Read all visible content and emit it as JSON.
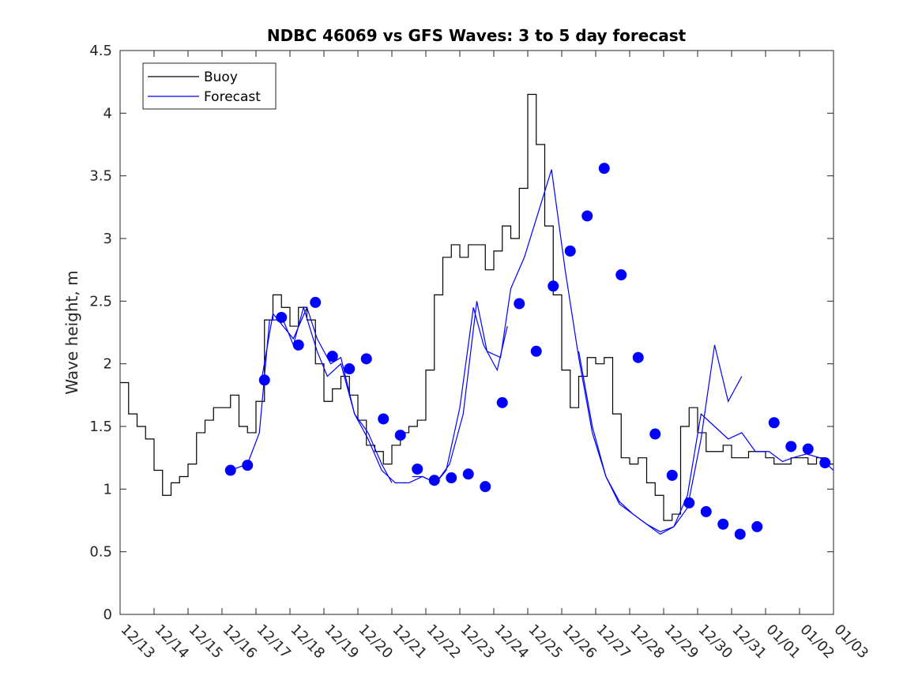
{
  "chart_data": {
    "type": "line",
    "title": "NDBC 46069 vs GFS Waves: 3 to 5 day forecast",
    "xlabel": "",
    "ylabel": "Wave height, m",
    "x_tick_labels": [
      "12/13",
      "12/14",
      "12/15",
      "12/16",
      "12/17",
      "12/18",
      "12/19",
      "12/20",
      "12/21",
      "12/22",
      "12/23",
      "12/24",
      "12/25",
      "12/26",
      "12/27",
      "12/28",
      "12/29",
      "12/30",
      "12/31",
      "01/01",
      "01/02",
      "01/03"
    ],
    "xlim": [
      0,
      21
    ],
    "ylim": [
      0,
      4.5
    ],
    "y_ticks": [
      "0",
      "0.5",
      "1",
      "1.5",
      "2",
      "2.5",
      "3",
      "3.5",
      "4",
      "4.5"
    ],
    "legend": {
      "position": "top-left",
      "entries": [
        "Buoy",
        "Forecast"
      ]
    },
    "colors": {
      "buoy": "#000000",
      "forecast": "#0000ff",
      "marker": "#0000ff",
      "axis": "#262626"
    },
    "series": [
      {
        "name": "Buoy",
        "x": [
          0,
          0.25,
          0.5,
          0.75,
          1,
          1.25,
          1.5,
          1.75,
          2,
          2.25,
          2.5,
          2.75,
          3,
          3.25,
          3.5,
          3.75,
          4,
          4.25,
          4.5,
          4.75,
          5,
          5.25,
          5.5,
          5.75,
          6,
          6.25,
          6.5,
          6.75,
          7,
          7.25,
          7.5,
          7.75,
          8,
          8.25,
          8.5,
          8.75,
          9,
          9.25,
          9.5,
          9.75,
          10,
          10.25,
          10.5,
          10.75,
          11,
          11.25,
          11.5,
          11.75,
          12,
          12.25,
          12.5,
          12.75,
          13,
          13.25,
          13.5,
          13.75,
          14,
          14.25,
          14.5,
          14.75,
          15,
          15.25,
          15.5,
          15.75,
          16,
          16.25,
          16.5,
          16.75,
          17,
          17.25,
          17.5,
          17.75,
          18,
          18.25,
          18.5,
          18.75,
          19,
          19.25,
          19.5,
          19.75,
          20,
          20.25,
          20.5,
          20.75,
          21
        ],
        "values": [
          1.85,
          1.6,
          1.5,
          1.4,
          1.15,
          0.95,
          1.05,
          1.1,
          1.2,
          1.45,
          1.55,
          1.65,
          1.65,
          1.75,
          1.5,
          1.45,
          1.7,
          2.35,
          2.55,
          2.45,
          2.3,
          2.45,
          2.35,
          2.0,
          1.7,
          1.8,
          1.9,
          1.75,
          1.55,
          1.35,
          1.3,
          1.2,
          1.35,
          1.45,
          1.5,
          1.55,
          1.95,
          2.55,
          2.85,
          2.95,
          2.85,
          2.95,
          2.95,
          2.75,
          2.9,
          3.1,
          3.0,
          3.4,
          4.15,
          3.75,
          3.1,
          2.55,
          1.95,
          1.65,
          1.9,
          2.05,
          2.0,
          2.05,
          1.6,
          1.25,
          1.2,
          1.25,
          1.05,
          0.95,
          0.75,
          0.8,
          1.5,
          1.65,
          1.45,
          1.3,
          1.3,
          1.35,
          1.25,
          1.25,
          1.3,
          1.3,
          1.25,
          1.2,
          1.2,
          1.25,
          1.25,
          1.2,
          1.25,
          1.2,
          1.2
        ]
      },
      {
        "name": "Forecast",
        "runs": [
          {
            "x": [
              3.25,
              3.75,
              4.1,
              4.4,
              4.8,
              5.1,
              5.4,
              5.8,
              6.1,
              6.5,
              6.9,
              7.3,
              7.7,
              8.0
            ],
            "values": [
              1.15,
              1.2,
              1.45,
              2.35,
              2.35,
              2.15,
              2.45,
              2.1,
              1.9,
              2.0,
              1.6,
              1.45,
              1.2,
              1.05
            ]
          },
          {
            "x": [
              4.15,
              4.5,
              4.8,
              5.1,
              5.5,
              5.8,
              6.2,
              6.5,
              6.9,
              7.3,
              7.7,
              8.1,
              8.5,
              8.9,
              9.3,
              9.6,
              10.0,
              10.4,
              10.7,
              11.1,
              11.4
            ],
            "values": [
              1.85,
              2.4,
              2.3,
              2.2,
              2.45,
              2.2,
              2.0,
              2.05,
              1.6,
              1.4,
              1.15,
              1.05,
              1.05,
              1.1,
              1.05,
              1.15,
              1.65,
              2.45,
              2.15,
              1.95,
              2.3
            ]
          },
          {
            "x": [
              8.6,
              8.9,
              9.3,
              9.7,
              10.1,
              10.5,
              10.8,
              11.2,
              11.5,
              11.9,
              12.3,
              12.7,
              13.1,
              13.5,
              13.9,
              14.3,
              14.7,
              15.1,
              15.5,
              15.9,
              16.3,
              16.7,
              17.1,
              17.5,
              17.9,
              18.3,
              18.7,
              19.1,
              19.5,
              19.8,
              20.2,
              20.6,
              21.0
            ],
            "values": [
              1.1,
              1.1,
              1.05,
              1.2,
              1.6,
              2.5,
              2.1,
              2.05,
              2.6,
              2.85,
              3.2,
              3.55,
              2.75,
              2.05,
              1.45,
              1.1,
              0.9,
              0.8,
              0.72,
              0.66,
              0.7,
              0.95,
              1.6,
              1.5,
              1.4,
              1.45,
              1.3,
              1.3,
              1.22,
              1.25,
              1.28,
              1.25,
              1.15
            ]
          },
          {
            "x": [
              13.5,
              13.9,
              14.3,
              14.7,
              15.1,
              15.5,
              15.9,
              16.3,
              16.7,
              17.1,
              17.5,
              17.9,
              18.3
            ],
            "values": [
              2.1,
              1.5,
              1.1,
              0.88,
              0.8,
              0.72,
              0.64,
              0.7,
              0.85,
              1.4,
              2.15,
              1.7,
              1.9
            ]
          }
        ]
      },
      {
        "name": "Forecast markers",
        "x": [
          3.25,
          3.75,
          4.25,
          4.75,
          5.25,
          5.75,
          6.25,
          6.75,
          7.25,
          7.75,
          8.25,
          8.75,
          9.25,
          9.75,
          10.25,
          10.75,
          11.25,
          11.75,
          12.25,
          12.75,
          13.25,
          13.75,
          14.25,
          14.75,
          15.25,
          15.75,
          16.25,
          16.75,
          17.25,
          17.75,
          18.25,
          18.75,
          19.25,
          19.75,
          20.25,
          20.75
        ],
        "values": [
          1.15,
          1.19,
          1.87,
          2.37,
          2.15,
          2.49,
          2.06,
          1.96,
          2.04,
          1.56,
          1.43,
          1.16,
          1.07,
          1.09,
          1.12,
          1.02,
          1.69,
          2.48,
          2.1,
          2.62,
          2.9,
          3.18,
          3.56,
          2.71,
          2.05,
          1.44,
          1.11,
          0.89,
          0.82,
          0.72,
          0.64,
          0.7,
          1.53,
          1.34,
          1.32,
          1.21
        ]
      }
    ]
  }
}
